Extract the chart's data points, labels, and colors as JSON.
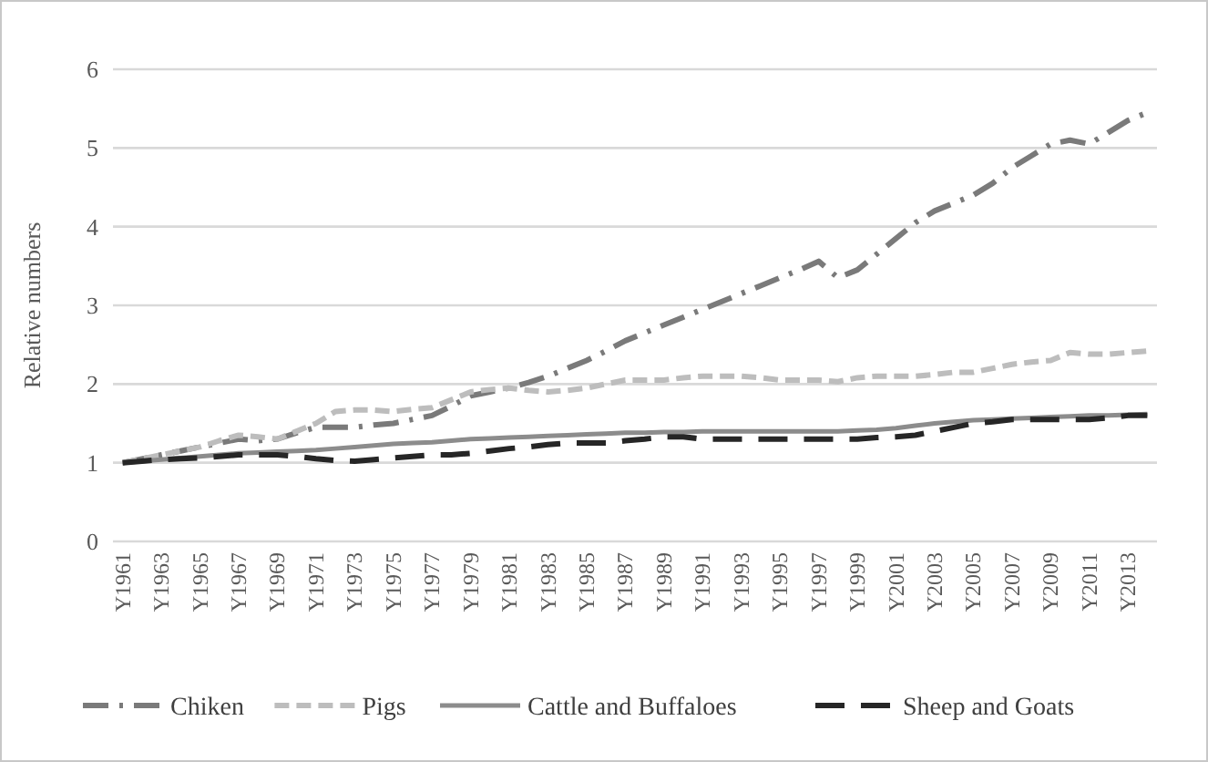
{
  "chart_data": {
    "type": "line",
    "ylabel": "Relative numbers",
    "categories": [
      "Y1961",
      null,
      "Y1963",
      null,
      "Y1965",
      null,
      "Y1967",
      null,
      "Y1969",
      null,
      "Y1971",
      null,
      "Y1973",
      null,
      "Y1975",
      null,
      "Y1977",
      null,
      "Y1979",
      null,
      "Y1981",
      null,
      "Y1983",
      null,
      "Y1985",
      null,
      "Y1987",
      null,
      "Y1989",
      null,
      "Y1991",
      null,
      "Y1993",
      null,
      "Y1995",
      null,
      "Y1997",
      null,
      "Y1999",
      null,
      "Y2001",
      null,
      "Y2003",
      null,
      "Y2005",
      null,
      "Y2007",
      null,
      "Y2009",
      null,
      "Y2011",
      null,
      "Y2013",
      null
    ],
    "series": [
      {
        "name": "Chiken",
        "color": "#7a7a7a",
        "line_style": "dashed",
        "values": [
          1.0,
          1.05,
          1.1,
          1.15,
          1.2,
          1.25,
          1.3,
          1.28,
          1.3,
          1.38,
          1.45,
          1.45,
          1.45,
          1.48,
          1.5,
          1.55,
          1.6,
          1.72,
          1.85,
          1.9,
          1.95,
          2.02,
          2.1,
          2.2,
          2.3,
          2.42,
          2.55,
          2.65,
          2.75,
          2.85,
          2.95,
          3.05,
          3.15,
          3.25,
          3.35,
          3.45,
          3.56,
          3.35,
          3.45,
          3.65,
          3.85,
          4.05,
          4.2,
          4.3,
          4.4,
          4.55,
          4.75,
          4.9,
          5.05,
          5.1,
          5.05,
          5.2,
          5.35,
          5.45
        ]
      },
      {
        "name": "Pigs",
        "color": "#bdbdbd",
        "line_style": "dashed",
        "values": [
          1.0,
          1.05,
          1.1,
          1.15,
          1.2,
          1.28,
          1.35,
          1.33,
          1.3,
          1.4,
          1.5,
          1.65,
          1.67,
          1.67,
          1.65,
          1.68,
          1.7,
          1.8,
          1.9,
          1.93,
          1.95,
          1.92,
          1.9,
          1.92,
          1.95,
          2.0,
          2.05,
          2.05,
          2.05,
          2.08,
          2.1,
          2.1,
          2.1,
          2.08,
          2.05,
          2.05,
          2.05,
          2.03,
          2.08,
          2.1,
          2.1,
          2.1,
          2.12,
          2.15,
          2.15,
          2.2,
          2.25,
          2.28,
          2.3,
          2.4,
          2.38,
          2.38,
          2.4,
          2.42
        ]
      },
      {
        "name": "Cattle and Buffaloes",
        "color": "#8c8c8c",
        "line_style": "solid",
        "values": [
          1.0,
          1.02,
          1.04,
          1.06,
          1.08,
          1.1,
          1.12,
          1.13,
          1.14,
          1.15,
          1.16,
          1.18,
          1.2,
          1.22,
          1.24,
          1.25,
          1.26,
          1.28,
          1.3,
          1.31,
          1.32,
          1.33,
          1.34,
          1.35,
          1.36,
          1.37,
          1.38,
          1.38,
          1.39,
          1.39,
          1.4,
          1.4,
          1.4,
          1.4,
          1.4,
          1.4,
          1.4,
          1.4,
          1.41,
          1.42,
          1.44,
          1.47,
          1.5,
          1.52,
          1.54,
          1.55,
          1.56,
          1.57,
          1.58,
          1.59,
          1.6,
          1.6,
          1.61,
          1.62
        ]
      },
      {
        "name": "Sheep and Goats",
        "color": "#262626",
        "line_style": "dashed",
        "values": [
          1.0,
          1.02,
          1.04,
          1.05,
          1.06,
          1.08,
          1.1,
          1.1,
          1.1,
          1.08,
          1.05,
          1.03,
          1.02,
          1.04,
          1.06,
          1.08,
          1.1,
          1.1,
          1.12,
          1.15,
          1.18,
          1.2,
          1.23,
          1.25,
          1.25,
          1.25,
          1.28,
          1.3,
          1.33,
          1.33,
          1.3,
          1.3,
          1.3,
          1.3,
          1.3,
          1.3,
          1.3,
          1.3,
          1.3,
          1.32,
          1.33,
          1.35,
          1.4,
          1.45,
          1.5,
          1.52,
          1.55,
          1.55,
          1.55,
          1.55,
          1.55,
          1.57,
          1.6,
          1.6
        ]
      }
    ],
    "ylim": [
      0,
      6
    ],
    "yticks": [
      0,
      1,
      2,
      3,
      4,
      5,
      6
    ],
    "grid": "y",
    "legend": "bottom",
    "marker": "none"
  }
}
